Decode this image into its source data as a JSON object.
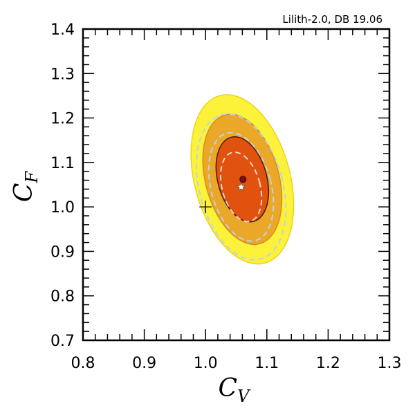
{
  "chart_data": {
    "type": "contour",
    "annotation": "Lilith-2.0, DB 19.06",
    "xlabel_main": "C",
    "xlabel_sub": "V",
    "ylabel_main": "C",
    "ylabel_sub": "F",
    "xlim": [
      0.8,
      1.3
    ],
    "ylim": [
      0.7,
      1.4
    ],
    "xticks": [
      0.8,
      0.9,
      1.0,
      1.1,
      1.2,
      1.3
    ],
    "yticks": [
      0.7,
      0.8,
      0.9,
      1.0,
      1.1,
      1.2,
      1.3,
      1.4
    ],
    "xtick_labels": [
      "0.8",
      "0.9",
      "1.0",
      "1.1",
      "1.2",
      "1.3"
    ],
    "ytick_labels": [
      "0.7",
      "0.8",
      "0.9",
      "1.0",
      "1.1",
      "1.2",
      "1.3",
      "1.4"
    ],
    "minor_step": 0.02,
    "center": {
      "x": 1.06,
      "y": 1.062
    },
    "regions": [
      {
        "level": "3sigma",
        "color": "#fdf23a",
        "edge": "#f0d020",
        "rx": 0.078,
        "ry": 0.195,
        "rotation_deg": -15
      },
      {
        "level": "2sigma",
        "color": "#eba828",
        "edge": "#d88a22",
        "rx": 0.06,
        "ry": 0.15,
        "rotation_deg": -15
      },
      {
        "level": "1sigma",
        "color": "#e2520f",
        "edge": "#4a1a0a",
        "rx": 0.04,
        "ry": 0.098,
        "rotation_deg": -15
      }
    ],
    "dashed_contours": [
      {
        "color": "#b8d4e8",
        "cx": 1.058,
        "cy": 1.045,
        "rx": 0.068,
        "ry": 0.168,
        "rotation_deg": -15
      },
      {
        "color": "#b8d4e8",
        "cx": 1.058,
        "cy": 1.045,
        "rx": 0.049,
        "ry": 0.125,
        "rotation_deg": -15
      },
      {
        "color": "#f2d8c8",
        "cx": 1.058,
        "cy": 1.045,
        "rx": 0.031,
        "ry": 0.08,
        "rotation_deg": -15
      }
    ],
    "best_fit_point": {
      "x": 1.061,
      "y": 1.062,
      "color": "#7a1010"
    },
    "star_point": {
      "x": 1.058,
      "y": 1.045,
      "color": "#ffffff"
    },
    "sm_point": {
      "x": 1.0,
      "y": 1.0
    }
  }
}
